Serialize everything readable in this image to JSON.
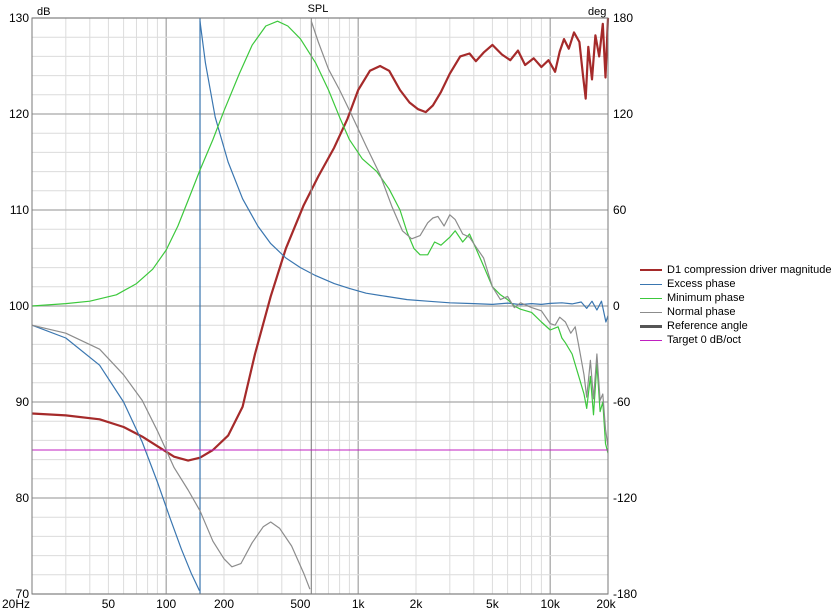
{
  "chart_data": {
    "type": "line",
    "title": "SPL",
    "x_scale": "log",
    "xlim": [
      20,
      20000
    ],
    "x_ticks": [
      {
        "value": 20,
        "label": "20Hz"
      },
      {
        "value": 50,
        "label": "50"
      },
      {
        "value": 100,
        "label": "100"
      },
      {
        "value": 200,
        "label": "200"
      },
      {
        "value": 500,
        "label": "500"
      },
      {
        "value": 1000,
        "label": "1k"
      },
      {
        "value": 2000,
        "label": "2k"
      },
      {
        "value": 5000,
        "label": "5k"
      },
      {
        "value": 10000,
        "label": "10k"
      },
      {
        "value": 20000,
        "label": "20k"
      }
    ],
    "y_left": {
      "unit": "dB",
      "range": [
        70,
        130
      ],
      "ticks": [
        70,
        80,
        90,
        100,
        110,
        120,
        130
      ]
    },
    "y_right": {
      "unit": "deg",
      "range": [
        -180,
        180
      ],
      "ticks": [
        -180,
        -120,
        -60,
        0,
        60,
        120,
        180
      ]
    },
    "grid": true,
    "legend_position": "right",
    "legend": [
      {
        "label": "D1 compression driver magnitude",
        "color": "#a52a2a",
        "width": 2
      },
      {
        "label": "Excess phase",
        "color": "#3a76b0",
        "width": 1
      },
      {
        "label": "Minimum phase",
        "color": "#3cc83c",
        "width": 1
      },
      {
        "label": "Normal phase",
        "color": "#8c8c8c",
        "width": 1
      },
      {
        "label": "Reference angle",
        "color": "#555555",
        "width": 3
      },
      {
        "label": "Target 0 dB/oct",
        "color": "#c020c0",
        "width": 1
      }
    ],
    "series": [
      {
        "name": "D1 compression driver magnitude",
        "axis": "left",
        "color": "#a52a2a",
        "width": 2.2,
        "points": [
          [
            20,
            88.8
          ],
          [
            30,
            88.6
          ],
          [
            45,
            88.2
          ],
          [
            60,
            87.4
          ],
          [
            75,
            86.4
          ],
          [
            90,
            85.4
          ],
          [
            110,
            84.3
          ],
          [
            130,
            83.9
          ],
          [
            150,
            84.2
          ],
          [
            175,
            85.0
          ],
          [
            210,
            86.5
          ],
          [
            250,
            89.5
          ],
          [
            290,
            95
          ],
          [
            350,
            101
          ],
          [
            420,
            106
          ],
          [
            520,
            110.5
          ],
          [
            620,
            113.5
          ],
          [
            750,
            116.5
          ],
          [
            880,
            119.5
          ],
          [
            1000,
            122.5
          ],
          [
            1150,
            124.5
          ],
          [
            1300,
            125
          ],
          [
            1450,
            124.5
          ],
          [
            1650,
            122.5
          ],
          [
            1850,
            121.2
          ],
          [
            2050,
            120.5
          ],
          [
            2250,
            120.2
          ],
          [
            2450,
            120.9
          ],
          [
            2700,
            122.3
          ],
          [
            3000,
            124.2
          ],
          [
            3400,
            126
          ],
          [
            3800,
            126.3
          ],
          [
            4100,
            125.5
          ],
          [
            4500,
            126.4
          ],
          [
            5000,
            127.2
          ],
          [
            5600,
            126.2
          ],
          [
            6200,
            125.6
          ],
          [
            6800,
            126.6
          ],
          [
            7400,
            125.1
          ],
          [
            8200,
            125.8
          ],
          [
            9000,
            124.9
          ],
          [
            9800,
            125.6
          ],
          [
            10600,
            124.4
          ],
          [
            11200,
            126.5
          ],
          [
            11800,
            127.8
          ],
          [
            12500,
            126.8
          ],
          [
            13300,
            128.5
          ],
          [
            14200,
            127.5
          ],
          [
            14800,
            124.1
          ],
          [
            15300,
            121.6
          ],
          [
            15800,
            127
          ],
          [
            16500,
            123.6
          ],
          [
            17200,
            128.2
          ],
          [
            18000,
            126
          ],
          [
            18800,
            129.4
          ],
          [
            19400,
            123.8
          ],
          [
            20000,
            130
          ]
        ]
      },
      {
        "name": "Excess phase",
        "axis": "right",
        "color": "#3a76b0",
        "width": 1.2,
        "points": [
          [
            20,
            -12
          ],
          [
            30,
            -20
          ],
          [
            45,
            -37
          ],
          [
            60,
            -60
          ],
          [
            75,
            -85
          ],
          [
            90,
            -110
          ],
          [
            105,
            -133
          ],
          [
            120,
            -152
          ],
          [
            135,
            -167
          ],
          [
            149,
            -178
          ],
          [
            150,
            178
          ],
          [
            160,
            152
          ],
          [
            180,
            118
          ],
          [
            210,
            90
          ],
          [
            250,
            67
          ],
          [
            300,
            50
          ],
          [
            350,
            39
          ],
          [
            420,
            30
          ],
          [
            500,
            24
          ],
          [
            600,
            19
          ],
          [
            750,
            14
          ],
          [
            900,
            11
          ],
          [
            1100,
            8
          ],
          [
            1400,
            6
          ],
          [
            1800,
            4
          ],
          [
            2300,
            3
          ],
          [
            3000,
            2
          ],
          [
            4000,
            1.5
          ],
          [
            5000,
            1
          ],
          [
            6000,
            1.8
          ],
          [
            7000,
            0.9
          ],
          [
            8000,
            1.5
          ],
          [
            9000,
            1
          ],
          [
            10000,
            1.6
          ],
          [
            11500,
            2
          ],
          [
            13000,
            1.3
          ],
          [
            14500,
            2.5
          ],
          [
            15500,
            -1.5
          ],
          [
            16500,
            3
          ],
          [
            17500,
            -2.5
          ],
          [
            18500,
            3
          ],
          [
            19500,
            -10
          ],
          [
            20000,
            -6
          ]
        ]
      },
      {
        "name": "Minimum phase",
        "axis": "right",
        "color": "#3cc83c",
        "width": 1.2,
        "points": [
          [
            20,
            0
          ],
          [
            30,
            1.5
          ],
          [
            40,
            3
          ],
          [
            55,
            7
          ],
          [
            70,
            14
          ],
          [
            85,
            23
          ],
          [
            100,
            35
          ],
          [
            115,
            50
          ],
          [
            130,
            66
          ],
          [
            150,
            85
          ],
          [
            175,
            104
          ],
          [
            200,
            122
          ],
          [
            240,
            145
          ],
          [
            280,
            163
          ],
          [
            330,
            175
          ],
          [
            380,
            178
          ],
          [
            430,
            175
          ],
          [
            500,
            167
          ],
          [
            600,
            152
          ],
          [
            700,
            135
          ],
          [
            800,
            118
          ],
          [
            900,
            104
          ],
          [
            1050,
            92
          ],
          [
            1250,
            84
          ],
          [
            1450,
            73
          ],
          [
            1650,
            60
          ],
          [
            1800,
            46
          ],
          [
            1950,
            36
          ],
          [
            2100,
            32
          ],
          [
            2300,
            32
          ],
          [
            2500,
            40
          ],
          [
            2700,
            38
          ],
          [
            3000,
            43
          ],
          [
            3200,
            47
          ],
          [
            3500,
            40
          ],
          [
            3800,
            45
          ],
          [
            4100,
            36
          ],
          [
            4500,
            25
          ],
          [
            5000,
            12
          ],
          [
            5500,
            7
          ],
          [
            6000,
            4
          ],
          [
            6500,
            0
          ],
          [
            7000,
            -2
          ],
          [
            8000,
            -4
          ],
          [
            9000,
            -10
          ],
          [
            10000,
            -15
          ],
          [
            11000,
            -13
          ],
          [
            11500,
            -20
          ],
          [
            12000,
            -23
          ],
          [
            13000,
            -30
          ],
          [
            14000,
            -43
          ],
          [
            15000,
            -55
          ],
          [
            15500,
            -64
          ],
          [
            16200,
            -44
          ],
          [
            16800,
            -68
          ],
          [
            17500,
            -36
          ],
          [
            18200,
            -66
          ],
          [
            18800,
            -60
          ],
          [
            19400,
            -86
          ],
          [
            20000,
            -92
          ]
        ]
      },
      {
        "name": "Normal phase",
        "axis": "right",
        "color": "#8c8c8c",
        "width": 1.2,
        "points": [
          [
            20,
            -12
          ],
          [
            30,
            -17
          ],
          [
            45,
            -27
          ],
          [
            60,
            -43
          ],
          [
            75,
            -59
          ],
          [
            90,
            -78
          ],
          [
            110,
            -101
          ],
          [
            130,
            -115
          ],
          [
            150,
            -128
          ],
          [
            175,
            -147
          ],
          [
            200,
            -158
          ],
          [
            220,
            -163
          ],
          [
            245,
            -161
          ],
          [
            280,
            -148
          ],
          [
            320,
            -138
          ],
          [
            350,
            -135
          ],
          [
            390,
            -139
          ],
          [
            450,
            -150
          ],
          [
            520,
            -167
          ],
          [
            560,
            -177
          ],
          [
            570,
            178
          ],
          [
            620,
            165
          ],
          [
            700,
            148
          ],
          [
            800,
            135
          ],
          [
            920,
            120
          ],
          [
            1100,
            100
          ],
          [
            1300,
            82
          ],
          [
            1500,
            62
          ],
          [
            1700,
            47
          ],
          [
            1900,
            42
          ],
          [
            2100,
            44
          ],
          [
            2300,
            52
          ],
          [
            2450,
            55
          ],
          [
            2600,
            56
          ],
          [
            2800,
            50
          ],
          [
            3000,
            57
          ],
          [
            3200,
            54
          ],
          [
            3500,
            45
          ],
          [
            3800,
            43
          ],
          [
            4100,
            37
          ],
          [
            4500,
            30
          ],
          [
            5000,
            12
          ],
          [
            5500,
            4
          ],
          [
            6000,
            6
          ],
          [
            6500,
            -1
          ],
          [
            7000,
            2
          ],
          [
            8000,
            -1
          ],
          [
            9000,
            -3
          ],
          [
            10000,
            -11
          ],
          [
            10600,
            -12
          ],
          [
            11200,
            -7
          ],
          [
            12000,
            -10
          ],
          [
            12800,
            -17
          ],
          [
            13500,
            -13
          ],
          [
            14200,
            -27
          ],
          [
            15000,
            -43
          ],
          [
            15500,
            -57
          ],
          [
            16200,
            -34
          ],
          [
            16800,
            -58
          ],
          [
            17500,
            -30
          ],
          [
            18200,
            -59
          ],
          [
            18800,
            -55
          ],
          [
            19400,
            -77
          ],
          [
            20000,
            -88
          ]
        ]
      },
      {
        "name": "Target 0 dB/oct",
        "axis": "left",
        "color": "#c020c0",
        "width": 1,
        "points": [
          [
            20,
            85
          ],
          [
            20000,
            85
          ]
        ]
      }
    ]
  }
}
